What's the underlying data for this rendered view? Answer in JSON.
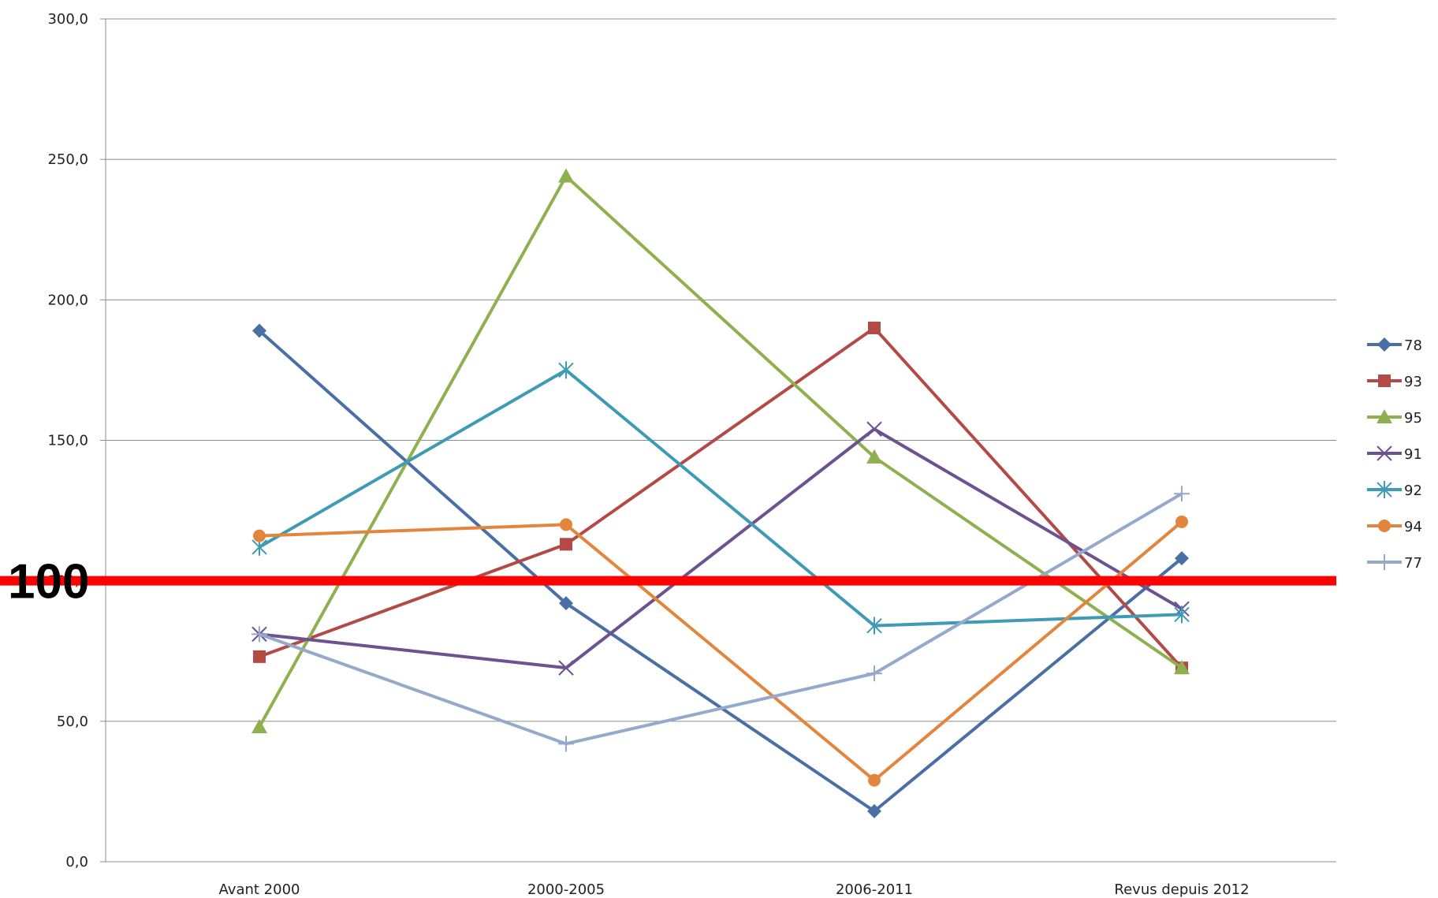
{
  "chart_data": {
    "type": "line",
    "categories": [
      "Avant 2000",
      "2000-2005",
      "2006-2011",
      "Revus depuis 2012"
    ],
    "ylim": [
      0,
      300
    ],
    "y_ticks": [
      "0,0",
      "50,0",
      "100,0",
      "150,0",
      "200,0",
      "250,0",
      "300,0"
    ],
    "y_tick_values": [
      0,
      50,
      100,
      150,
      200,
      250,
      300
    ],
    "grid": "horizontal",
    "legend_position": "right",
    "series": [
      {
        "name": "78",
        "color": "#4a6fa5",
        "marker": "diamond",
        "values": [
          189,
          92,
          18,
          108
        ]
      },
      {
        "name": "93",
        "color": "#b34a46",
        "marker": "square",
        "values": [
          73,
          113,
          190,
          69
        ]
      },
      {
        "name": "95",
        "color": "#8fb04f",
        "marker": "triangle",
        "values": [
          48,
          244,
          144,
          69
        ]
      },
      {
        "name": "91",
        "color": "#6c5290",
        "marker": "x",
        "values": [
          81,
          69,
          154,
          90
        ]
      },
      {
        "name": "92",
        "color": "#3f9bb5",
        "marker": "star",
        "values": [
          112,
          175,
          84,
          88
        ]
      },
      {
        "name": "94",
        "color": "#e4853e",
        "marker": "circle",
        "values": [
          116,
          120,
          29,
          121
        ]
      },
      {
        "name": "77",
        "color": "#94a9cc",
        "marker": "plus",
        "values": [
          81,
          42,
          67,
          131
        ]
      }
    ],
    "reference_line": {
      "value": 100,
      "label": "100",
      "color": "#ff0000"
    }
  }
}
